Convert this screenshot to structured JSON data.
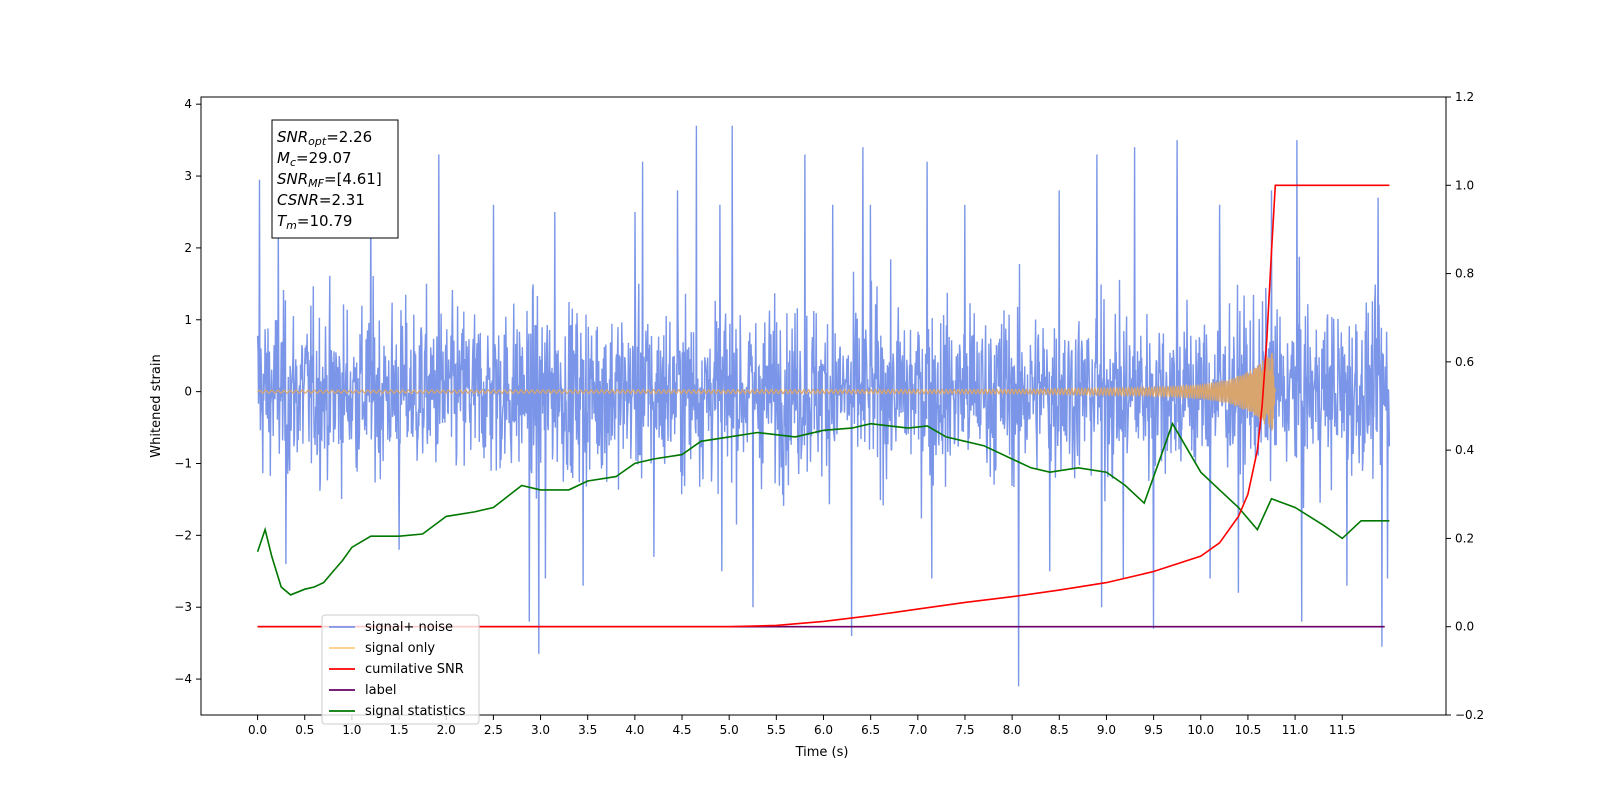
{
  "chart_data": {
    "type": "line",
    "title": "",
    "xlabel": "Time (s)",
    "ylabel": "Whitened strain",
    "xlim": [
      -0.6,
      12.6
    ],
    "ylim": [
      -4.5,
      4.1
    ],
    "y2lim": [
      -0.2,
      1.2
    ],
    "x_ticks": [
      "0.0",
      "0.5",
      "1.0",
      "1.5",
      "2.0",
      "2.5",
      "3.0",
      "3.5",
      "4.0",
      "4.5",
      "5.0",
      "5.5",
      "6.0",
      "6.5",
      "7.0",
      "7.5",
      "8.0",
      "8.5",
      "9.0",
      "9.5",
      "10.0",
      "10.5",
      "11.0",
      "11.5"
    ],
    "y_ticks": [
      "4",
      "3",
      "2",
      "1",
      "0",
      "−1",
      "−2",
      "−3",
      "−4"
    ],
    "y2_ticks": [
      "1.2",
      "1.0",
      "0.8",
      "0.6",
      "0.4",
      "0.2",
      "0.0",
      "−0.2"
    ],
    "grid": false,
    "legend": {
      "placement": "lower-left",
      "entries": [
        {
          "label": "signal+ noise",
          "color": "#7b96e8"
        },
        {
          "label": "signal only",
          "color": "#ffcc80"
        },
        {
          "label": "cumilative SNR",
          "color": "#ff0000"
        },
        {
          "label": "label",
          "color": "#660066"
        },
        {
          "label": "signal statistics",
          "color": "#007700"
        }
      ]
    },
    "annotation": {
      "placement": "top-left",
      "lines": [
        {
          "sym": "SNR",
          "sub": "opt",
          "val": "=2.26"
        },
        {
          "sym": "M",
          "sub": "c",
          "val": "=29.07"
        },
        {
          "sym": "SNR",
          "sub": "MF",
          "val": "=[4.61]"
        },
        {
          "sym": "CSNR",
          "sub": "",
          "val": "=2.31"
        },
        {
          "sym": "T",
          "sub": "m",
          "val": "=10.79"
        }
      ]
    },
    "series": [
      {
        "name": "signal+ noise",
        "axis": "left",
        "color": "#7b96e8",
        "x_range": [
          0.0,
          12.0
        ],
        "band_upper": 1.5,
        "band_lower": -1.5,
        "peaks": [
          [
            0.02,
            2.95
          ],
          [
            0.22,
            2.4
          ],
          [
            1.2,
            3.0
          ],
          [
            1.92,
            3.3
          ],
          [
            2.5,
            2.6
          ],
          [
            3.15,
            2.5
          ],
          [
            4.0,
            2.5
          ],
          [
            4.08,
            3.2
          ],
          [
            4.45,
            2.8
          ],
          [
            4.65,
            3.7
          ],
          [
            4.9,
            2.6
          ],
          [
            5.03,
            3.7
          ],
          [
            5.8,
            3.3
          ],
          [
            6.1,
            2.6
          ],
          [
            6.42,
            3.4
          ],
          [
            6.5,
            2.6
          ],
          [
            7.1,
            3.2
          ],
          [
            7.5,
            2.6
          ],
          [
            8.5,
            2.8
          ],
          [
            8.9,
            3.3
          ],
          [
            9.3,
            3.4
          ],
          [
            9.75,
            3.5
          ],
          [
            10.2,
            2.6
          ],
          [
            10.75,
            2.8
          ],
          [
            11.02,
            3.5
          ],
          [
            11.88,
            2.7
          ]
        ],
        "troughs": [
          [
            0.3,
            -2.4
          ],
          [
            1.5,
            -2.2
          ],
          [
            2.88,
            -3.2
          ],
          [
            2.98,
            -3.65
          ],
          [
            3.05,
            -2.6
          ],
          [
            3.45,
            -2.7
          ],
          [
            4.2,
            -2.3
          ],
          [
            4.92,
            -2.5
          ],
          [
            5.25,
            -3.0
          ],
          [
            6.3,
            -3.4
          ],
          [
            7.15,
            -2.6
          ],
          [
            8.07,
            -4.1
          ],
          [
            8.4,
            -2.5
          ],
          [
            8.95,
            -3.0
          ],
          [
            9.18,
            -2.6
          ],
          [
            9.5,
            -3.3
          ],
          [
            10.1,
            -2.6
          ],
          [
            10.4,
            -2.8
          ],
          [
            11.07,
            -3.2
          ],
          [
            11.55,
            -2.7
          ],
          [
            11.92,
            -3.55
          ],
          [
            11.98,
            -2.6
          ]
        ]
      },
      {
        "name": "signal only",
        "axis": "left",
        "color": "#d9a56f",
        "x_range": [
          0.0,
          10.79
        ],
        "baseline": 0.0,
        "chirp_amplitude": [
          [
            0.0,
            0.02
          ],
          [
            8.0,
            0.03
          ],
          [
            9.5,
            0.06
          ],
          [
            10.0,
            0.1
          ],
          [
            10.3,
            0.17
          ],
          [
            10.5,
            0.28
          ],
          [
            10.6,
            0.35
          ],
          [
            10.7,
            0.5
          ],
          [
            10.76,
            0.55
          ],
          [
            10.79,
            0.0
          ]
        ]
      },
      {
        "name": "cumilative SNR",
        "axis": "right",
        "color": "#ff0000",
        "x": [
          0.0,
          5.0,
          5.5,
          6.0,
          6.5,
          7.0,
          7.5,
          8.0,
          8.5,
          9.0,
          9.5,
          10.0,
          10.2,
          10.4,
          10.5,
          10.6,
          10.65,
          10.7,
          10.75,
          10.79,
          12.0
        ],
        "y": [
          0.0,
          0.0,
          0.003,
          0.012,
          0.025,
          0.04,
          0.055,
          0.068,
          0.083,
          0.1,
          0.125,
          0.16,
          0.19,
          0.25,
          0.3,
          0.4,
          0.5,
          0.65,
          0.85,
          1.0,
          1.0
        ]
      },
      {
        "name": "label",
        "axis": "right",
        "color": "#660066",
        "x": [
          0.0,
          11.95
        ],
        "y": [
          0.0,
          0.0
        ]
      },
      {
        "name": "signal statistics",
        "axis": "right",
        "color": "#007700",
        "x": [
          0.0,
          0.08,
          0.15,
          0.25,
          0.35,
          0.5,
          0.6,
          0.7,
          0.8,
          0.9,
          1.0,
          1.2,
          1.5,
          1.75,
          2.0,
          2.3,
          2.5,
          2.8,
          3.0,
          3.3,
          3.5,
          3.8,
          4.0,
          4.2,
          4.5,
          4.7,
          5.0,
          5.3,
          5.5,
          5.7,
          6.0,
          6.3,
          6.5,
          6.7,
          6.9,
          7.1,
          7.3,
          7.5,
          7.7,
          8.0,
          8.2,
          8.4,
          8.7,
          9.0,
          9.2,
          9.4,
          9.7,
          10.0,
          10.2,
          10.4,
          10.6,
          10.75,
          11.0,
          11.3,
          11.5,
          11.7,
          12.0
        ],
        "y": [
          0.17,
          0.22,
          0.16,
          0.09,
          0.072,
          0.085,
          0.09,
          0.1,
          0.125,
          0.15,
          0.18,
          0.205,
          0.205,
          0.21,
          0.25,
          0.26,
          0.27,
          0.32,
          0.31,
          0.31,
          0.33,
          0.34,
          0.37,
          0.38,
          0.39,
          0.42,
          0.43,
          0.44,
          0.435,
          0.43,
          0.445,
          0.45,
          0.46,
          0.455,
          0.45,
          0.455,
          0.43,
          0.42,
          0.41,
          0.38,
          0.36,
          0.35,
          0.36,
          0.35,
          0.32,
          0.28,
          0.46,
          0.35,
          0.31,
          0.27,
          0.22,
          0.29,
          0.27,
          0.23,
          0.2,
          0.24,
          0.24
        ]
      }
    ]
  }
}
